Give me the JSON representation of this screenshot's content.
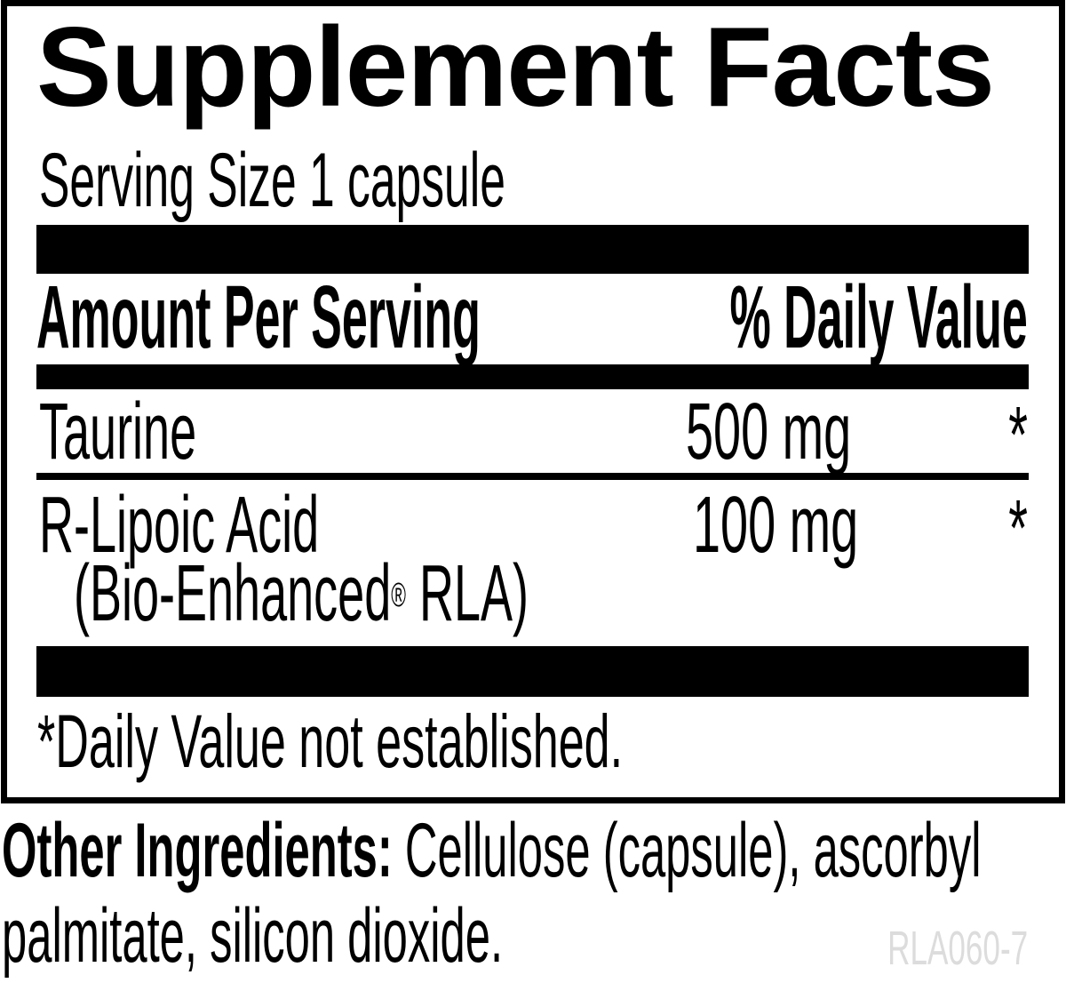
{
  "panel": {
    "title": "Supplement Facts",
    "serving_size": "Serving Size 1 capsule",
    "columns": {
      "amount_header": "Amount Per Serving",
      "daily_value_header": "% Daily Value"
    },
    "rows": [
      {
        "name": "Taurine",
        "amount": "500 mg",
        "daily_value": "*"
      },
      {
        "name": "R-Lipoic Acid",
        "note_prefix": "(Bio-Enhanced",
        "note_reg_mark": "®",
        "note_suffix": " RLA)",
        "amount": "100 mg",
        "daily_value": "*"
      }
    ],
    "footnote": "*Daily Value not established."
  },
  "other_ingredients": {
    "label": "Other Ingredients:",
    "line1_rest": " Cellulose (capsule), ascorbyl",
    "line2": "palmitate, silicon dioxide."
  },
  "product_code": "RLA060-7",
  "colors": {
    "ink": "#000000",
    "background": "#ffffff",
    "product_code_gray": "#dcdcdd"
  }
}
